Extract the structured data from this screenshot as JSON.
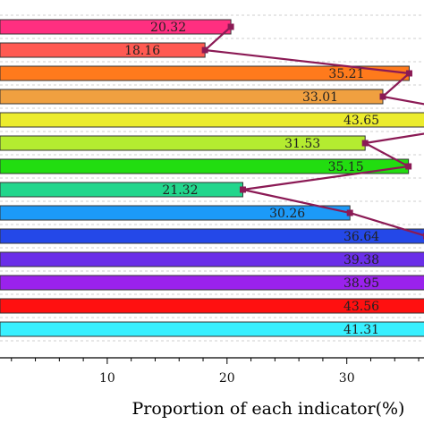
{
  "chart_data": {
    "type": "bar",
    "orientation": "horizontal",
    "xlabel": "Proportion of each indicator(%)",
    "ylabel": "",
    "xlim": [
      0,
      36
    ],
    "x_ticks": [
      10,
      20,
      30
    ],
    "grid": true,
    "legend": "none",
    "values": [
      20.32,
      18.16,
      35.21,
      33.01,
      43.65,
      31.53,
      35.15,
      21.32,
      30.26,
      36.64,
      39.38,
      38.95,
      43.56,
      41.31
    ],
    "value_labels": [
      "20.32",
      "18.16",
      "35.21",
      "33.01",
      "43.65",
      "31.53",
      "35.15",
      "21.32",
      "30.26",
      "36.64",
      "39.38",
      "38.95",
      "43.56",
      "41.31"
    ],
    "bar_colors": [
      "#ff2f80",
      "#ff5a52",
      "#ff7a1c",
      "#f0a040",
      "#ecec2e",
      "#b4ec30",
      "#22dd10",
      "#22d68c",
      "#1c9af8",
      "#2448e8",
      "#6a2ee8",
      "#9a22ec",
      "#ff1010",
      "#38f0ff"
    ],
    "line": {
      "type": "line",
      "color": "#8b1a55",
      "marker": "square",
      "values": [
        20.32,
        18.16,
        35.21,
        33.01,
        43.65,
        31.53,
        35.15,
        21.32,
        30.26,
        36.64
      ]
    }
  }
}
